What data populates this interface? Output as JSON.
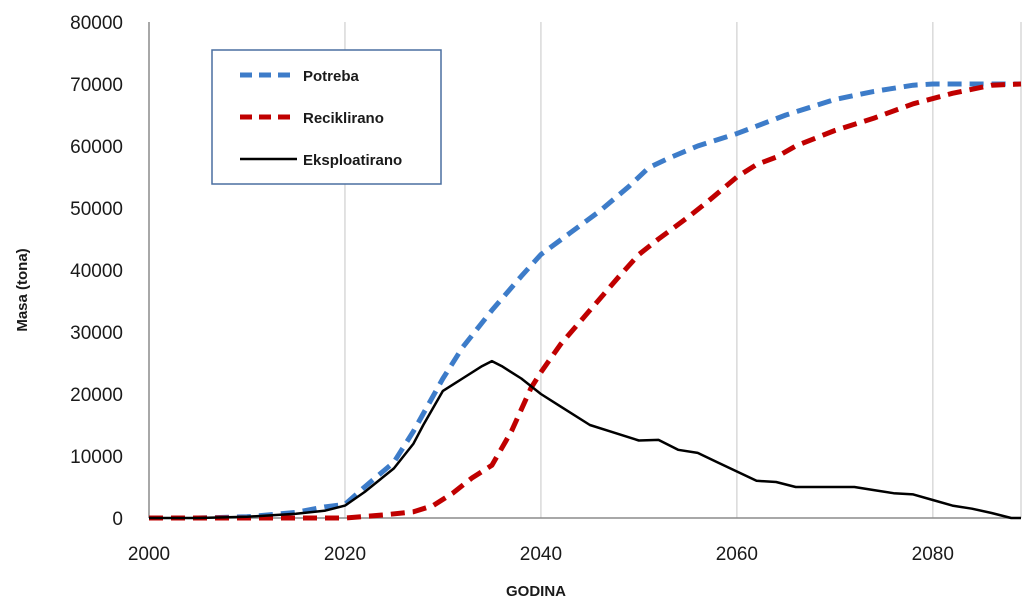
{
  "chart_data": {
    "type": "line",
    "title": "",
    "xlabel": "GODINA",
    "ylabel": "Masa (tona)",
    "xlim": [
      2000,
      2089
    ],
    "ylim": [
      0,
      80000
    ],
    "xticks": [
      2000,
      2020,
      2040,
      2060,
      2080
    ],
    "yticks": [
      0,
      10000,
      20000,
      30000,
      40000,
      50000,
      60000,
      70000,
      80000
    ],
    "grid": "vertical",
    "legend_position": "top-left",
    "series": [
      {
        "name": "Potreba",
        "color": "#3d7cc9",
        "style": "dashed",
        "points": [
          [
            2000,
            0
          ],
          [
            2005,
            0
          ],
          [
            2010,
            200
          ],
          [
            2015,
            900
          ],
          [
            2018,
            1800
          ],
          [
            2020,
            2200
          ],
          [
            2022,
            5000
          ],
          [
            2025,
            9000
          ],
          [
            2027,
            14000
          ],
          [
            2030,
            22500
          ],
          [
            2032,
            27500
          ],
          [
            2035,
            33500
          ],
          [
            2038,
            39000
          ],
          [
            2040,
            42500
          ],
          [
            2043,
            46000
          ],
          [
            2046,
            49500
          ],
          [
            2049,
            53500
          ],
          [
            2051,
            56500
          ],
          [
            2053,
            58000
          ],
          [
            2056,
            60000
          ],
          [
            2060,
            62000
          ],
          [
            2065,
            65000
          ],
          [
            2070,
            67500
          ],
          [
            2074,
            68800
          ],
          [
            2078,
            69800
          ],
          [
            2080,
            70000
          ],
          [
            2085,
            70000
          ],
          [
            2089,
            70000
          ]
        ]
      },
      {
        "name": "Reciklirano",
        "color": "#c00000",
        "style": "dashed",
        "points": [
          [
            2000,
            0
          ],
          [
            2005,
            0
          ],
          [
            2010,
            0
          ],
          [
            2015,
            0
          ],
          [
            2020,
            0
          ],
          [
            2024,
            500
          ],
          [
            2027,
            1000
          ],
          [
            2029,
            2000
          ],
          [
            2031,
            4000
          ],
          [
            2033,
            6500
          ],
          [
            2035,
            8500
          ],
          [
            2037,
            14000
          ],
          [
            2039,
            21000
          ],
          [
            2040,
            23500
          ],
          [
            2042,
            28000
          ],
          [
            2045,
            33500
          ],
          [
            2048,
            39000
          ],
          [
            2050,
            42500
          ],
          [
            2052,
            45000
          ],
          [
            2055,
            48500
          ],
          [
            2057,
            51000
          ],
          [
            2060,
            55000
          ],
          [
            2062,
            57000
          ],
          [
            2064,
            58200
          ],
          [
            2066,
            60000
          ],
          [
            2070,
            62500
          ],
          [
            2074,
            64500
          ],
          [
            2078,
            66800
          ],
          [
            2082,
            68500
          ],
          [
            2086,
            69800
          ],
          [
            2089,
            70000
          ]
        ]
      },
      {
        "name": "Eksploatirano",
        "color": "#000000",
        "style": "solid",
        "points": [
          [
            2000,
            0
          ],
          [
            2005,
            0
          ],
          [
            2010,
            200
          ],
          [
            2015,
            700
          ],
          [
            2018,
            1200
          ],
          [
            2020,
            2000
          ],
          [
            2022,
            4200
          ],
          [
            2025,
            8000
          ],
          [
            2027,
            12000
          ],
          [
            2028,
            15000
          ],
          [
            2030,
            20500
          ],
          [
            2032,
            22500
          ],
          [
            2034,
            24500
          ],
          [
            2035,
            25300
          ],
          [
            2036,
            24500
          ],
          [
            2038,
            22500
          ],
          [
            2040,
            20000
          ],
          [
            2042,
            18000
          ],
          [
            2045,
            15000
          ],
          [
            2047,
            14000
          ],
          [
            2050,
            12500
          ],
          [
            2052,
            12600
          ],
          [
            2054,
            11000
          ],
          [
            2056,
            10500
          ],
          [
            2058,
            9000
          ],
          [
            2060,
            7500
          ],
          [
            2062,
            6000
          ],
          [
            2064,
            5800
          ],
          [
            2066,
            5000
          ],
          [
            2068,
            5000
          ],
          [
            2072,
            5000
          ],
          [
            2074,
            4500
          ],
          [
            2076,
            4000
          ],
          [
            2078,
            3800
          ],
          [
            2080,
            2900
          ],
          [
            2082,
            2000
          ],
          [
            2084,
            1500
          ],
          [
            2086,
            800
          ],
          [
            2088,
            0
          ],
          [
            2089,
            0
          ]
        ]
      }
    ]
  }
}
